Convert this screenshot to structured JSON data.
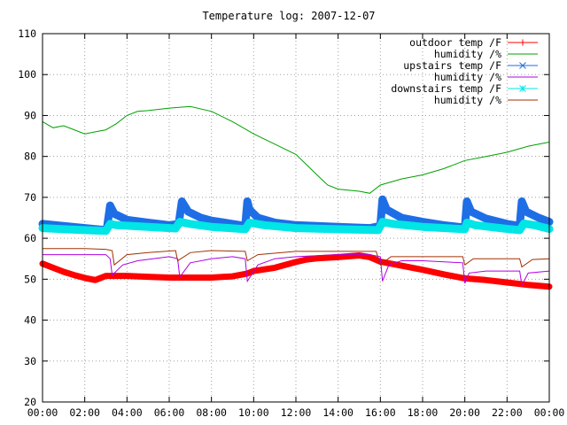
{
  "chart_data": {
    "type": "line",
    "title": "Temperature log: 2007-12-07",
    "xlabel": "",
    "ylabel": "",
    "xlim": [
      0,
      24
    ],
    "ylim": [
      20,
      110
    ],
    "grid": true,
    "legend_position": "top-right",
    "x_ticks": [
      {
        "value": 0,
        "label": "00:00"
      },
      {
        "value": 2,
        "label": "02:00"
      },
      {
        "value": 4,
        "label": "04:00"
      },
      {
        "value": 6,
        "label": "06:00"
      },
      {
        "value": 8,
        "label": "08:00"
      },
      {
        "value": 10,
        "label": "10:00"
      },
      {
        "value": 12,
        "label": "12:00"
      },
      {
        "value": 14,
        "label": "14:00"
      },
      {
        "value": 16,
        "label": "16:00"
      },
      {
        "value": 18,
        "label": "18:00"
      },
      {
        "value": 20,
        "label": "20:00"
      },
      {
        "value": 22,
        "label": "22:00"
      },
      {
        "value": 24,
        "label": "00:00"
      }
    ],
    "y_ticks": [
      {
        "value": 20,
        "label": "20"
      },
      {
        "value": 30,
        "label": "30"
      },
      {
        "value": 40,
        "label": "40"
      },
      {
        "value": 50,
        "label": "50"
      },
      {
        "value": 60,
        "label": "60"
      },
      {
        "value": 70,
        "label": "70"
      },
      {
        "value": 80,
        "label": "80"
      },
      {
        "value": 90,
        "label": "90"
      },
      {
        "value": 100,
        "label": "100"
      },
      {
        "value": 110,
        "label": "110"
      }
    ],
    "series": [
      {
        "name": "outdoor temp /F",
        "color": "#ff0000",
        "marker": "plus",
        "heavy": true,
        "x": [
          0,
          0.5,
          1,
          1.5,
          2,
          2.5,
          3,
          3.5,
          4,
          5,
          6,
          7,
          8,
          9,
          9.7,
          10,
          11,
          12,
          12.5,
          13,
          14,
          15,
          15.5,
          16,
          17,
          18,
          19,
          20,
          21,
          22,
          23,
          24
        ],
        "y": [
          53.8,
          52.8,
          51.8,
          51.0,
          50.3,
          49.8,
          50.8,
          50.8,
          50.8,
          50.6,
          50.4,
          50.4,
          50.4,
          50.7,
          51.4,
          52.0,
          52.8,
          54.2,
          54.8,
          55.1,
          55.4,
          55.8,
          55.4,
          54.3,
          53.3,
          52.3,
          51.2,
          50.2,
          49.8,
          49.2,
          48.6,
          48.2
        ]
      },
      {
        "name": "humidity /%",
        "color": "#00a000",
        "marker": "none",
        "heavy": false,
        "x": [
          0,
          0.5,
          1,
          1.5,
          2,
          2.5,
          3,
          3.5,
          4,
          4.5,
          5,
          6,
          7,
          8,
          9,
          10,
          11,
          12,
          12.5,
          13,
          13.5,
          14,
          15,
          15.5,
          16,
          17,
          18,
          19,
          20,
          21,
          22,
          23,
          24
        ],
        "y": [
          88.5,
          87.0,
          87.5,
          86.5,
          85.5,
          86.0,
          86.5,
          88.0,
          90.0,
          91.0,
          91.2,
          91.8,
          92.2,
          91.0,
          88.5,
          85.5,
          83.0,
          80.5,
          78.0,
          75.5,
          73.0,
          72.0,
          71.5,
          71.0,
          73.0,
          74.5,
          75.5,
          77.0,
          79.0,
          80.0,
          81.0,
          82.5,
          83.5
        ]
      },
      {
        "name": "upstairs temp /F",
        "color": "#1e6ee6",
        "marker": "cross",
        "heavy": true,
        "x": [
          0,
          1,
          2,
          3,
          3.05,
          3.2,
          3.4,
          4,
          5,
          6,
          6.45,
          6.6,
          6.9,
          7.5,
          8,
          9,
          9.6,
          9.7,
          9.8,
          10.2,
          11,
          12,
          14,
          15.5,
          16,
          16.1,
          16.3,
          17,
          18,
          19,
          20,
          20.1,
          20.3,
          21,
          22,
          22.6,
          22.7,
          22.9,
          23.5,
          24
        ],
        "y": [
          63.5,
          63.0,
          62.5,
          62.0,
          62.5,
          68.0,
          66.0,
          64.5,
          63.8,
          63.2,
          63.5,
          69.0,
          66.5,
          65.0,
          64.3,
          63.5,
          63.0,
          69.0,
          67.0,
          65.0,
          63.8,
          63.2,
          62.8,
          62.5,
          63.0,
          69.5,
          67.0,
          65.0,
          64.0,
          63.2,
          62.6,
          69.0,
          66.5,
          64.8,
          63.5,
          63.0,
          69.0,
          66.5,
          65.0,
          64.0
        ]
      },
      {
        "name": "humidity /%",
        "color": "#b000e0",
        "marker": "none",
        "heavy": false,
        "x": [
          0,
          1,
          2,
          3,
          3.2,
          3.3,
          3.8,
          4.5,
          6,
          6.4,
          6.5,
          7,
          8,
          9,
          9.6,
          9.7,
          10.2,
          11,
          12,
          14,
          15.5,
          16,
          16.1,
          16.4,
          17,
          18,
          19.9,
          20,
          20.2,
          21,
          22,
          22.6,
          22.7,
          23,
          24
        ],
        "y": [
          56.0,
          56.0,
          56.0,
          56.0,
          55.0,
          51.0,
          53.5,
          54.5,
          55.5,
          55.0,
          50.5,
          54.0,
          55.0,
          55.5,
          55.0,
          49.5,
          53.5,
          55.0,
          55.5,
          56.0,
          56.0,
          55.5,
          49.5,
          53.5,
          54.5,
          54.5,
          54.0,
          49.0,
          51.5,
          52.0,
          52.0,
          52.0,
          48.5,
          51.5,
          52.0
        ]
      },
      {
        "name": "downstairs temp /F",
        "color": "#00e5e5",
        "marker": "star",
        "heavy": true,
        "x": [
          0,
          1,
          2,
          3,
          3.2,
          3.5,
          5,
          6.3,
          6.5,
          7,
          8,
          9.6,
          9.8,
          10.5,
          12,
          14,
          15.9,
          16.1,
          16.6,
          18,
          20,
          20.1,
          20.5,
          22,
          22.6,
          22.8,
          23.3,
          24
        ],
        "y": [
          62.5,
          62.2,
          62.0,
          61.8,
          63.5,
          63.2,
          62.8,
          62.4,
          64.0,
          63.5,
          62.8,
          62.2,
          63.8,
          63.2,
          62.5,
          62.2,
          62.0,
          64.0,
          63.5,
          62.8,
          62.2,
          63.8,
          63.2,
          62.3,
          62.0,
          63.6,
          63.2,
          62.3
        ]
      },
      {
        "name": "humidity /%",
        "color": "#a03000",
        "marker": "none",
        "heavy": false,
        "x": [
          0,
          1,
          2,
          3,
          3.3,
          3.4,
          4,
          5,
          6.3,
          6.4,
          7,
          8,
          9.6,
          9.7,
          10.2,
          12,
          15.8,
          16.0,
          16.5,
          18,
          19.9,
          20.0,
          20.4,
          22,
          22.6,
          22.7,
          23.2,
          24
        ],
        "y": [
          57.5,
          57.5,
          57.5,
          57.3,
          57.0,
          53.5,
          56.0,
          56.5,
          57.0,
          54.5,
          56.5,
          57.0,
          56.8,
          54.5,
          56.0,
          56.8,
          56.8,
          53.5,
          55.5,
          55.5,
          55.5,
          53.5,
          55.0,
          55.0,
          55.0,
          53.0,
          54.8,
          55.0
        ]
      }
    ]
  }
}
